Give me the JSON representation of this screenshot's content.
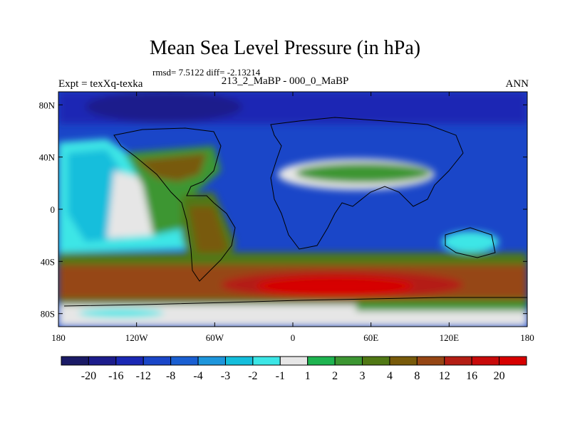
{
  "chart_data": {
    "type": "heatmap",
    "title": "Mean Sea Level Pressure (in hPa)",
    "stats_text": "rmsd= 7.5122 diff= -2.13214",
    "left_header": "Expt = texXq-texka",
    "center_header": "213_2_MaBP - 000_0_MaBP",
    "right_header": "ANN",
    "x_ticks": [
      "180",
      "120W",
      "60W",
      "0",
      "60E",
      "120E",
      "180"
    ],
    "y_ticks": [
      "80N",
      "40N",
      "0",
      "40S",
      "80S"
    ],
    "x_range": [
      -180,
      180
    ],
    "y_range": [
      -90,
      90
    ],
    "colorbar": {
      "labels": [
        "-20",
        "-16",
        "-12",
        "-8",
        "-4",
        "-3",
        "-2",
        "-1",
        "1",
        "2",
        "3",
        "4",
        "8",
        "12",
        "16",
        "20"
      ],
      "levels": [
        -24,
        -20,
        -16,
        -12,
        -8,
        -4,
        -3,
        -2,
        -1,
        1,
        2,
        3,
        4,
        8,
        12,
        16,
        20,
        24
      ],
      "colors": [
        "#1a1a66",
        "#1c1c8c",
        "#1a28b4",
        "#1a46c8",
        "#1a5fd2",
        "#1e96dc",
        "#14bedc",
        "#3ce6e6",
        "#e6e6e6",
        "#1eb450",
        "#3c9632",
        "#507814",
        "#785a0a",
        "#964614",
        "#b41e14",
        "#c80a0a",
        "#d70000"
      ]
    }
  }
}
